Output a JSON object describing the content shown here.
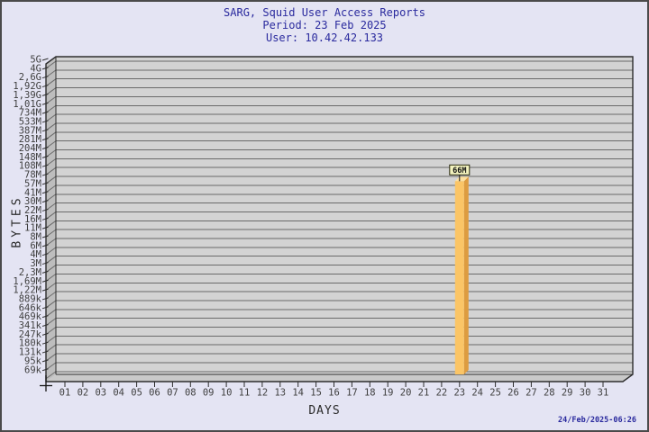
{
  "header": {
    "title": "SARG, Squid User Access Reports",
    "period": "Period: 23 Feb 2025",
    "user": "User: 10.42.42.133"
  },
  "footer": {
    "generated_at": "24/Feb/2025-06:26"
  },
  "chart_data": {
    "type": "bar",
    "title": "SARG, Squid User Access Reports",
    "subtitle": [
      "Period: 23 Feb 2025",
      "User: 10.42.42.133"
    ],
    "xlabel": "DAYS",
    "ylabel": "BYTES",
    "y_scale": "logarithmic-geometric (ratio ~1.375 per gridline, bytes)",
    "grid": "horizontal gridlines on, 3D extruded plot box",
    "legend_position": "none",
    "x_tick_labels": [
      "01",
      "02",
      "03",
      "04",
      "05",
      "06",
      "07",
      "08",
      "09",
      "10",
      "11",
      "12",
      "13",
      "14",
      "15",
      "16",
      "17",
      "18",
      "19",
      "20",
      "21",
      "22",
      "23",
      "24",
      "25",
      "26",
      "27",
      "28",
      "29",
      "30",
      "31"
    ],
    "y_tick_labels": [
      "5G",
      "4G",
      "2,6G",
      "1,92G",
      "1,39G",
      "1,01G",
      "734M",
      "533M",
      "387M",
      "281M",
      "204M",
      "148M",
      "108M",
      "78M",
      "57M",
      "41M",
      "30M",
      "22M",
      "16M",
      "11M",
      "8M",
      "6M",
      "4M",
      "3M",
      "2,3M",
      "1,69M",
      "1,22M",
      "889k",
      "646k",
      "469k",
      "341k",
      "247k",
      "180k",
      "131k",
      "95k",
      "69k"
    ],
    "bars": [
      {
        "x": "23",
        "value_label": "66M"
      }
    ],
    "colors": {
      "background": "#e4e4f3",
      "plot_face": "#d3d3d3",
      "wall": "#bdbdbd",
      "floor": "#c9c9c9",
      "grid": "#6a6a6a",
      "edge": "#2e2e2e",
      "tick_text": "#3f3f3f",
      "title_text": "#2a2a9e",
      "bar_front": "#fbc express566",
      "bar_front_fix": "#fbc566",
      "bar_side": "#dd9c40",
      "bar_top": "#fde1a0",
      "value_box_bg": "#f3f3be",
      "value_box_border": "#27270e"
    }
  }
}
